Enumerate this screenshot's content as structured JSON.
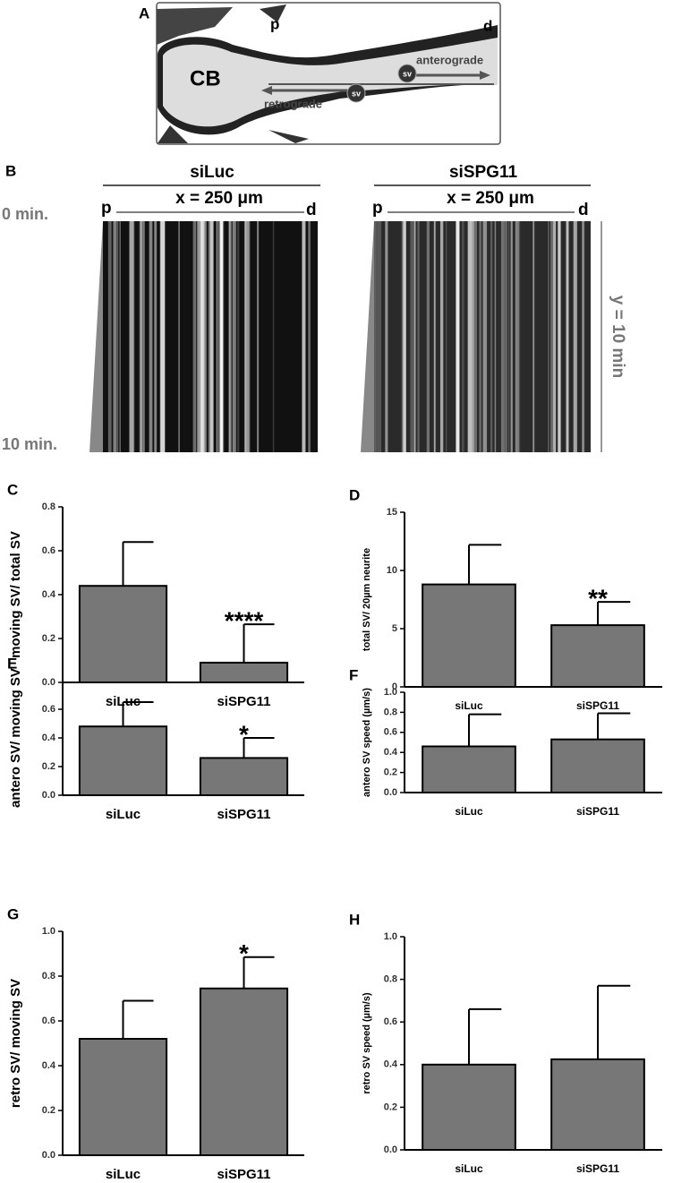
{
  "figure": {
    "panel_a": {
      "letter": "A",
      "proximal": "p",
      "distal": "d",
      "cell_body": "CB",
      "anterograde": "anterograde",
      "retrograde": "retrograde",
      "vesicle_1": "sv",
      "vesicle_2": "sv"
    },
    "panel_b": {
      "letter": "B",
      "left_title": "siLuc",
      "right_title": "siSPG11",
      "left_width": "x = 250 μm",
      "right_width": "x = 250 μm",
      "left_p": "p",
      "left_d": "d",
      "right_p": "p",
      "right_d": "d",
      "start_time": "0 min.",
      "end_time": "10 min.",
      "duration": "y = 10 min"
    }
  },
  "chart_data": [
    {
      "type": "bar",
      "panel": "C",
      "ylabel": "moving SV/ total SV",
      "categories": [
        "siLuc",
        "siSPG11"
      ],
      "values": [
        0.44,
        0.09
      ],
      "errors": [
        0.2,
        0.175
      ],
      "annotation": "****",
      "color": "#777777",
      "ylim": [
        0,
        0.8
      ],
      "yticks": [
        {
          "value": 0,
          "label": "0.0"
        },
        0.2,
        0.4,
        0.6,
        0.8
      ]
    },
    {
      "type": "bar",
      "panel": "D",
      "ylabel": "total SV/ 20µm neurite",
      "categories": [
        "siLuc",
        "siSPG11"
      ],
      "values": [
        8.8,
        5.3
      ],
      "errors": [
        3.4,
        2.0
      ],
      "annotation": "**",
      "color": "#777777",
      "ylim": [
        0,
        15
      ],
      "yticks": [
        0,
        5,
        10,
        15
      ]
    },
    {
      "type": "bar",
      "panel": "E",
      "ylabel": "antero SV/ moving SV",
      "categories": [
        "siLuc",
        "siSPG11"
      ],
      "values": [
        0.48,
        0.26
      ],
      "errors": [
        0.17,
        0.14
      ],
      "annotation": "*",
      "color": "#777777",
      "ylim": [
        0,
        0.8
      ],
      "yticks": [
        {
          "value": 0,
          "label": "0.0"
        },
        0.2,
        0.4,
        0.6
      ]
    },
    {
      "type": "bar",
      "panel": "F",
      "ylabel": "antero SV speed (µm/s)",
      "categories": [
        "siLuc",
        "siSPG11"
      ],
      "values": [
        0.46,
        0.53
      ],
      "errors": [
        0.32,
        0.26
      ],
      "color": "#777777",
      "ylim": [
        0,
        1
      ],
      "yticks": [
        {
          "value": 0,
          "label": "0.0"
        },
        0.2,
        0.4,
        0.6,
        0.8,
        {
          "value": 1,
          "label": "1.0"
        }
      ]
    },
    {
      "type": "bar",
      "panel": "G",
      "ylabel": "retro SV/ moving SV",
      "categories": [
        "siLuc",
        "siSPG11"
      ],
      "values": [
        0.52,
        0.745
      ],
      "errors": [
        0.17,
        0.14
      ],
      "annotation": "*",
      "color": "#777777",
      "ylim": [
        0,
        1
      ],
      "yticks": [
        {
          "value": 0,
          "label": "0.0"
        },
        0.2,
        0.4,
        0.6,
        0.8,
        {
          "value": 1,
          "label": "1.0"
        }
      ]
    },
    {
      "type": "bar",
      "panel": "H",
      "ylabel": "retro SV speed (µm/s)",
      "categories": [
        "siLuc",
        "siSPG11"
      ],
      "values": [
        0.4,
        0.425
      ],
      "errors": [
        0.26,
        0.345
      ],
      "color": "#777777",
      "ylim": [
        0,
        1
      ],
      "yticks": [
        {
          "value": 0,
          "label": "0.0"
        },
        0.2,
        0.4,
        0.6,
        0.8,
        {
          "value": 1,
          "label": "1.0"
        }
      ]
    }
  ]
}
